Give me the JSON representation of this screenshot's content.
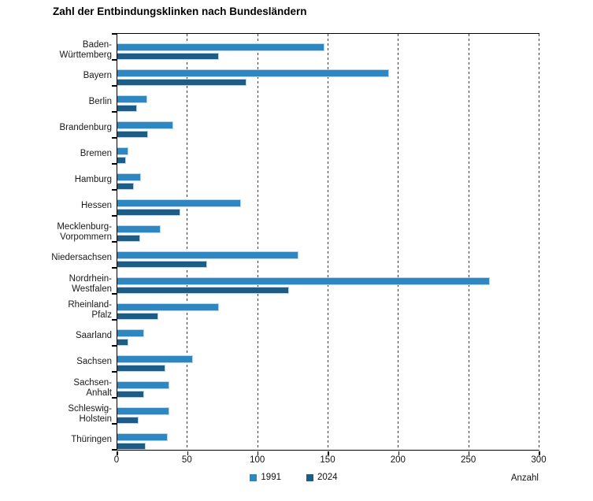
{
  "title": "Zahl der Entbindungsklinken nach Bundesländern",
  "chart_data": {
    "type": "bar",
    "orientation": "horizontal",
    "title": "Zahl der Entbindungsklinken nach Bundesländern",
    "categories": [
      "Baden-\nWürttemberg",
      "Bayern",
      "Berlin",
      "Brandenburg",
      "Bremen",
      "Hamburg",
      "Hessen",
      "Mecklenburg-\nVorpommern",
      "Niedersachsen",
      "Nordrhein-\nWestfalen",
      "Rheinland-\nPfalz",
      "Saarland",
      "Sachsen",
      "Sachsen-\nAnhalt",
      "Schleswig-\nHolstein",
      "Thüringen"
    ],
    "series": [
      {
        "name": "1991",
        "color": "#2e87c0",
        "values": [
          147,
          193,
          21,
          40,
          8,
          17,
          88,
          31,
          129,
          265,
          72,
          19,
          54,
          37,
          37,
          36
        ]
      },
      {
        "name": "2024",
        "color": "#1d5c85",
        "values": [
          72,
          92,
          14,
          22,
          6,
          12,
          45,
          16,
          64,
          122,
          29,
          8,
          34,
          19,
          15,
          20
        ]
      }
    ],
    "xlabel": "Anzahl",
    "xlim": [
      0,
      300
    ],
    "xticks": [
      0,
      50,
      100,
      150,
      200,
      250,
      300
    ],
    "grid": "vertical-dashed",
    "legend_position": "bottom"
  }
}
